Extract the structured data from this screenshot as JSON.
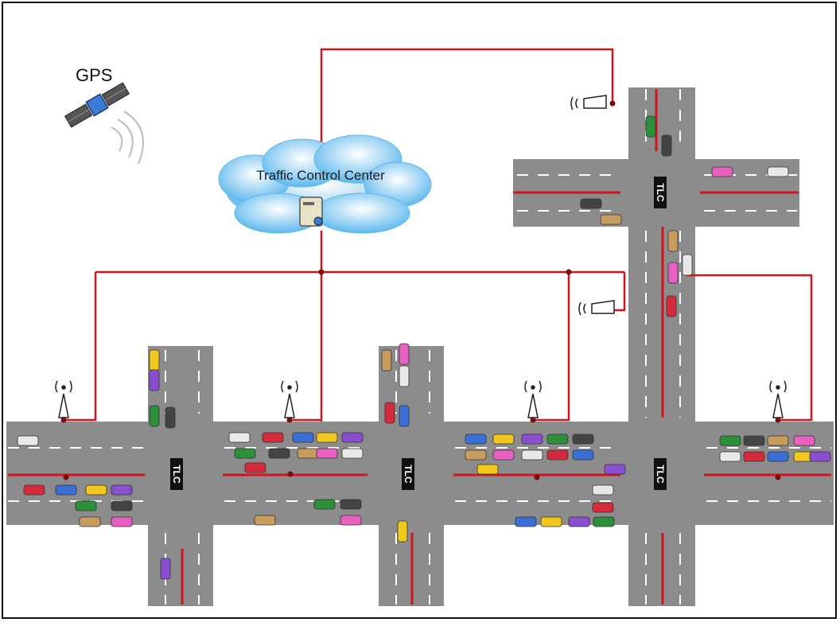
{
  "gps": {
    "label": "GPS"
  },
  "control_center": {
    "label": "Traffic Control Center"
  },
  "intersections": [
    {
      "id": "a",
      "label": "TLC"
    },
    {
      "id": "b",
      "label": "TLC"
    },
    {
      "id": "c",
      "label": "TLC"
    },
    {
      "id": "d",
      "label": "TLC"
    }
  ],
  "colors": {
    "road": "#8c8c8c",
    "lane_mark": "#ffffff",
    "network_line": "#d4141c",
    "cloud": "#7cc6f0",
    "frame": "#111111"
  },
  "icons": [
    "satellite-icon",
    "cloud-icon",
    "server-icon",
    "antenna-icon",
    "camera-icon",
    "car-icon",
    "traffic-light-controller-icon"
  ]
}
